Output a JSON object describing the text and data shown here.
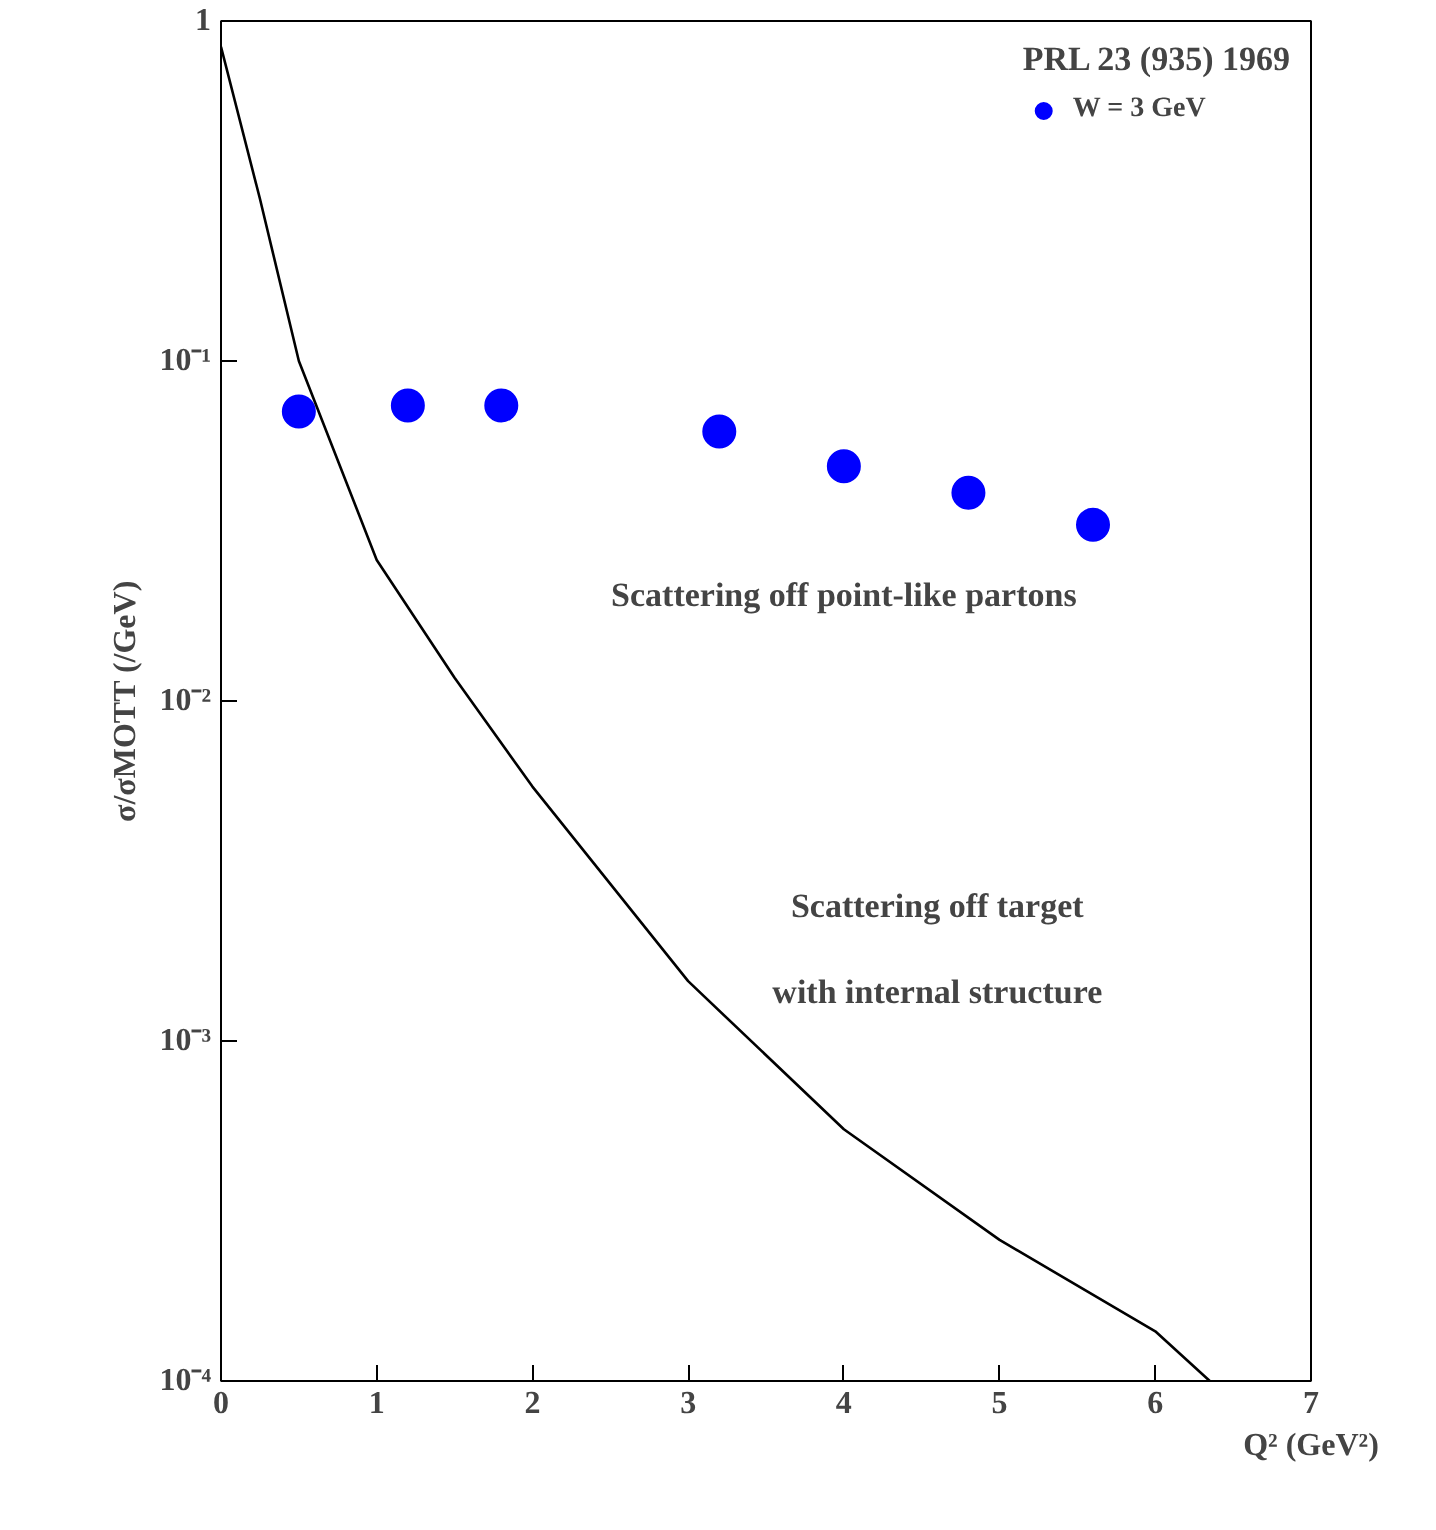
{
  "chart_data": {
    "type": "scatter",
    "xlabel": "Q² (GeV²)",
    "ylabel": "σ/σMOTT (/GeV)",
    "legend_title": "PRL 23 (935) 1969",
    "legend": "top right",
    "log": "y",
    "grid": false,
    "xlim": [
      0,
      7
    ],
    "xticks": [
      0,
      1,
      2,
      3,
      4,
      5,
      6,
      7
    ],
    "ylim": [
      0.0001,
      1
    ],
    "yticks": [
      {
        "value": 0.0001,
        "label": "10⁻⁴"
      },
      {
        "value": 0.001,
        "label": "10⁻³"
      },
      {
        "value": 0.01,
        "label": "10⁻²"
      },
      {
        "value": 0.1,
        "label": "10⁻¹"
      },
      {
        "value": 1,
        "label": "1"
      }
    ],
    "series": [
      {
        "name": "W = 3 GeV",
        "marker": "circle",
        "color": "#0000ff",
        "x": [
          0.5,
          1.2,
          1.8,
          3.2,
          4.0,
          4.8,
          5.6
        ],
        "values": [
          0.071,
          0.074,
          0.074,
          0.062,
          0.049,
          0.041,
          0.033
        ]
      },
      {
        "type": "line",
        "color": "#000000",
        "marker": "none",
        "x": [
          0.0,
          0.25,
          0.5,
          1.0,
          1.5,
          2.0,
          3.0,
          4.0,
          5.0,
          6.0,
          6.35
        ],
        "values": [
          0.84,
          0.3,
          0.1,
          0.026,
          0.0117,
          0.0056,
          0.0015,
          0.00055,
          0.00026,
          0.00014,
          0.0001
        ]
      }
    ],
    "annotations": [
      "Scattering off point-like partons",
      "Scattering off target with internal structure"
    ]
  }
}
